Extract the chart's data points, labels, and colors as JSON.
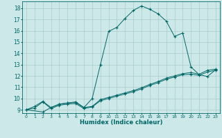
{
  "xlabel": "Humidex (Indice chaleur)",
  "bg_color": "#cce8e8",
  "grid_color": "#aacccc",
  "line_color": "#006666",
  "xlim": [
    -0.5,
    23.5
  ],
  "ylim": [
    8.7,
    18.6
  ],
  "yticks": [
    9,
    10,
    11,
    12,
    13,
    14,
    15,
    16,
    17,
    18
  ],
  "xticks": [
    0,
    1,
    2,
    3,
    4,
    5,
    6,
    7,
    8,
    9,
    10,
    11,
    12,
    13,
    14,
    15,
    16,
    17,
    18,
    19,
    20,
    21,
    22,
    23
  ],
  "s1_x": [
    0,
    1,
    2,
    3,
    4,
    5,
    6,
    7,
    8,
    9,
    10,
    11,
    12,
    13,
    14,
    15,
    16,
    17,
    18,
    19,
    20,
    21,
    22,
    23
  ],
  "s1_y": [
    9.0,
    9.3,
    9.75,
    9.2,
    9.5,
    9.6,
    9.65,
    9.2,
    9.3,
    9.9,
    10.1,
    10.3,
    10.5,
    10.7,
    10.95,
    11.25,
    11.5,
    11.8,
    12.0,
    12.2,
    12.3,
    12.15,
    12.5,
    12.6
  ],
  "s2_x": [
    0,
    1,
    2,
    3,
    4,
    5,
    6,
    7,
    8,
    9,
    10,
    11,
    12,
    13,
    14,
    15,
    16,
    17,
    18,
    19,
    20,
    21,
    22,
    23
  ],
  "s2_y": [
    9.0,
    9.15,
    9.7,
    9.1,
    9.4,
    9.5,
    9.55,
    9.1,
    9.25,
    9.8,
    10.0,
    10.2,
    10.4,
    10.6,
    10.85,
    11.15,
    11.4,
    11.7,
    11.9,
    12.1,
    12.15,
    12.05,
    12.35,
    12.5
  ],
  "s3_x": [
    0,
    2,
    3,
    4,
    5,
    6,
    7,
    8,
    9,
    10,
    11,
    12,
    13,
    14,
    15,
    16,
    17,
    18,
    19,
    20,
    21,
    22,
    23
  ],
  "s3_y": [
    9.0,
    8.8,
    9.2,
    9.5,
    9.6,
    9.7,
    9.2,
    10.0,
    13.0,
    15.95,
    16.3,
    17.1,
    17.8,
    18.2,
    17.9,
    17.5,
    16.85,
    15.5,
    15.8,
    12.8,
    12.1,
    11.95,
    12.55
  ]
}
